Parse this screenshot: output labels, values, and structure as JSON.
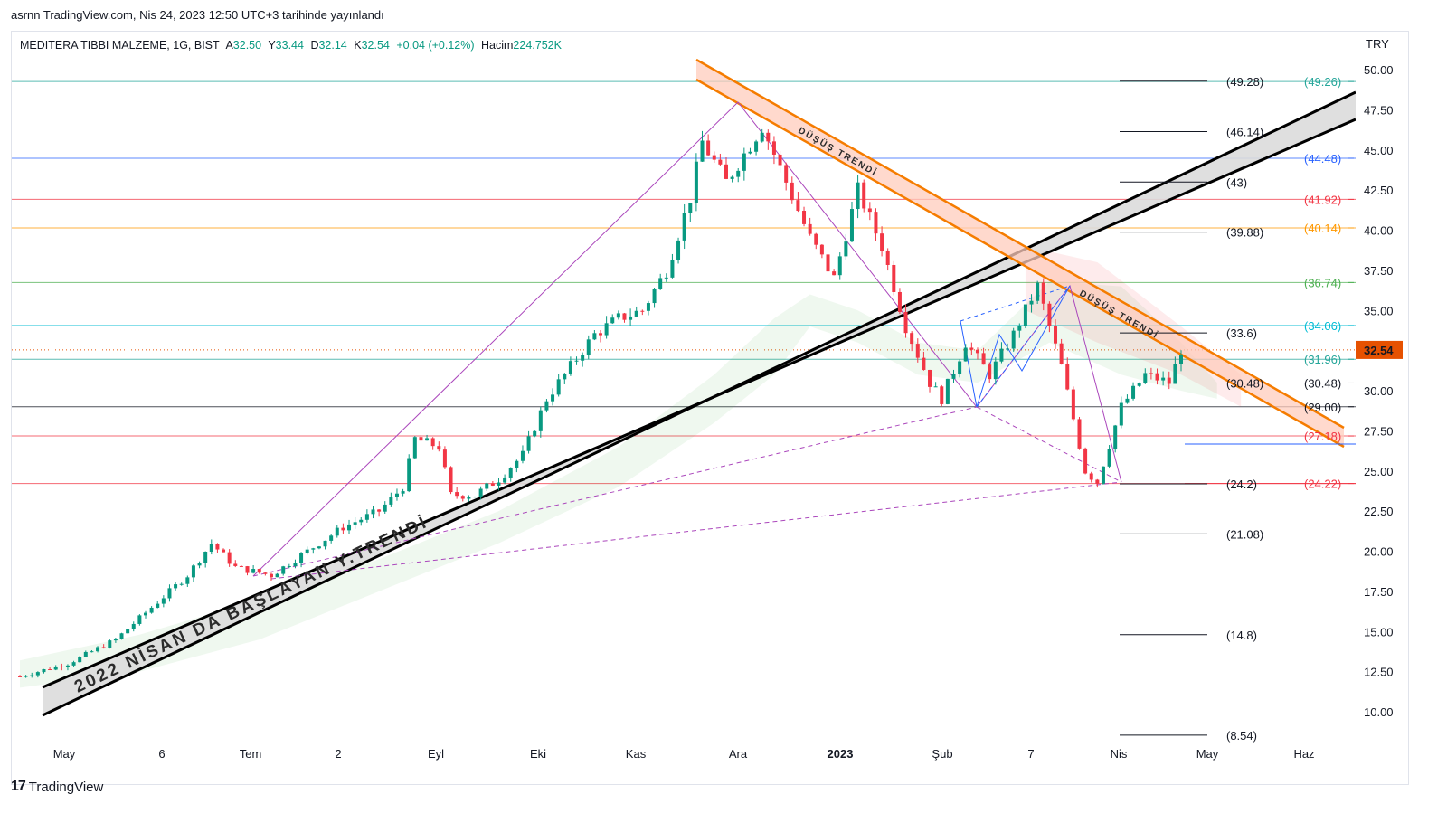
{
  "header": {
    "published": "asrnn TradingView.com, Nis 24, 2023 12:50 UTC+3 tarihinde yayınlandı"
  },
  "legend": {
    "symbol": "MEDITERA TIBBI MALZEME, 1G, BIST",
    "open_label": "A",
    "open": "32.50",
    "high_label": "Y",
    "high": "33.44",
    "low_label": "D",
    "low": "32.14",
    "close_label": "K",
    "close": "32.54",
    "change": "+0.04 (+0.12%)",
    "volume_label": "Hacim",
    "volume": "224.752K"
  },
  "currency": "TRY",
  "last_price": "32.54",
  "footer": {
    "brand": "TradingView",
    "logo": "17"
  },
  "colors": {
    "up": "#089981",
    "down": "#f23645",
    "trend_down": "#f57c00",
    "trend_up_fill": "#dcdcdc"
  },
  "annotations": {
    "uptrend_label": "2022 NİSAN DA BAŞLAYAN Y.TRENDİ",
    "downtrend_label_1": "DÜŞÜŞ TRENDİ",
    "downtrend_label_2": "DÜŞÜŞ TRENDİ"
  },
  "chart_data": {
    "type": "candlestick",
    "ylim": [
      8.5,
      52
    ],
    "y_ticks": [
      "50.00",
      "47.50",
      "45.00",
      "42.50",
      "40.00",
      "37.50",
      "35.00",
      "32.50",
      "30.00",
      "27.50",
      "25.00",
      "22.50",
      "20.00",
      "17.50",
      "15.00",
      "12.50",
      "10.00"
    ],
    "x_ticks": [
      {
        "label": "May",
        "bold": false
      },
      {
        "label": "6",
        "bold": false
      },
      {
        "label": "Tem",
        "bold": false
      },
      {
        "label": "2",
        "bold": false
      },
      {
        "label": "Eyl",
        "bold": false
      },
      {
        "label": "Eki",
        "bold": false
      },
      {
        "label": "Kas",
        "bold": false
      },
      {
        "label": "Ara",
        "bold": false
      },
      {
        "label": "2023",
        "bold": true
      },
      {
        "label": "Şub",
        "bold": false
      },
      {
        "label": "7",
        "bold": false
      },
      {
        "label": "Nis",
        "bold": false
      },
      {
        "label": "May",
        "bold": false
      },
      {
        "label": "Haz",
        "bold": false
      }
    ],
    "fib_levels_left": [
      {
        "label": "(49.28)",
        "value": 49.28
      },
      {
        "label": "(46.14)",
        "value": 46.14
      },
      {
        "label": "(43)",
        "value": 43
      },
      {
        "label": "(39.88)",
        "value": 39.88
      },
      {
        "label": "(33.6)",
        "value": 33.6
      },
      {
        "label": "(30.48)",
        "value": 30.48
      },
      {
        "label": "(24.2)",
        "value": 24.2
      },
      {
        "label": "(21.08)",
        "value": 21.08
      },
      {
        "label": "(14.8)",
        "value": 14.8
      },
      {
        "label": "(8.54)",
        "value": 8.54
      }
    ],
    "horizontal_levels_right": [
      {
        "label": "(49.26)",
        "value": 49.26,
        "color": "#26a69a"
      },
      {
        "label": "(44.48)",
        "value": 44.48,
        "color": "#2962ff"
      },
      {
        "label": "(41.92)",
        "value": 41.92,
        "color": "#f23645"
      },
      {
        "label": "(40.14)",
        "value": 40.14,
        "color": "#ff9800"
      },
      {
        "label": "(36.74)",
        "value": 36.74,
        "color": "#4caf50"
      },
      {
        "label": "(34.06)",
        "value": 34.06,
        "color": "#00bcd4"
      },
      {
        "label": "(31.96)",
        "value": 31.96,
        "color": "#26a69a"
      },
      {
        "label": "(30.48)",
        "value": 30.48,
        "color": "#131722"
      },
      {
        "label": "(29.00)",
        "value": 29.0,
        "color": "#131722"
      },
      {
        "label": "(27.18)",
        "value": 27.18,
        "color": "#f23645"
      },
      {
        "label": "(24.22)",
        "value": 24.22,
        "color": "#f23645"
      }
    ],
    "price_path": [
      [
        0,
        12.2
      ],
      [
        4,
        13.0
      ],
      [
        8,
        14.5
      ],
      [
        11,
        16.5
      ],
      [
        14,
        18.5
      ],
      [
        16,
        20.5
      ],
      [
        18,
        19.0
      ],
      [
        21,
        18.5
      ],
      [
        24,
        20.0
      ],
      [
        27,
        21.5
      ],
      [
        30,
        22.5
      ],
      [
        32,
        24.0
      ],
      [
        33,
        27.0
      ],
      [
        35,
        26.5
      ],
      [
        36,
        23.5
      ],
      [
        38,
        23.5
      ],
      [
        40,
        24.5
      ],
      [
        42,
        26.0
      ],
      [
        44,
        29.5
      ],
      [
        46,
        31.5
      ],
      [
        48,
        33.5
      ],
      [
        50,
        34.5
      ],
      [
        52,
        35.0
      ],
      [
        54,
        37.5
      ],
      [
        56,
        42.0
      ],
      [
        57,
        45.5
      ],
      [
        59,
        43.0
      ],
      [
        62,
        46.5
      ],
      [
        64,
        43.0
      ],
      [
        66,
        39.5
      ],
      [
        68,
        37.0
      ],
      [
        70,
        42.5
      ],
      [
        72,
        39.0
      ],
      [
        74,
        34.0
      ],
      [
        76,
        30.5
      ],
      [
        77,
        29.5
      ],
      [
        79,
        33.0
      ],
      [
        81,
        31.0
      ],
      [
        83,
        33.5
      ],
      [
        85,
        36.5
      ],
      [
        87,
        31.5
      ],
      [
        89,
        25.0
      ],
      [
        90,
        24.3
      ],
      [
        92,
        29.0
      ],
      [
        94,
        31.0
      ],
      [
        96,
        30.5
      ],
      [
        97,
        32.54
      ]
    ]
  }
}
